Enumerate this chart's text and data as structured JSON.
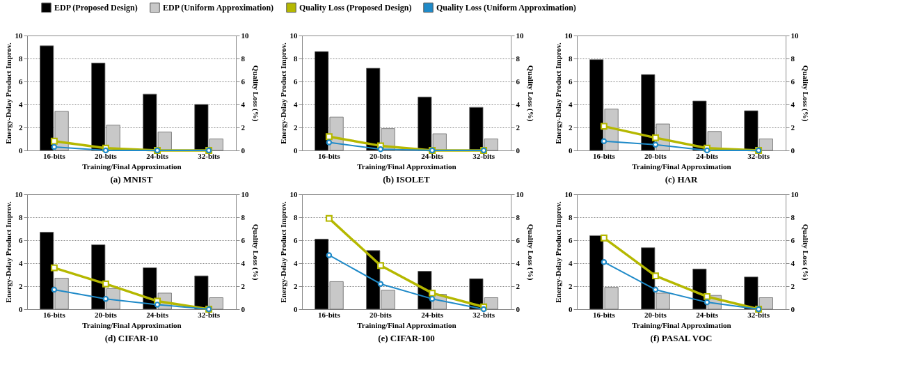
{
  "chart_data": [
    {
      "type": "bar",
      "title": "(a) MNIST",
      "xlabel": "Training/Final Approximation",
      "ylabel": "Energy-Delay Product Improv.",
      "y2label": "Quality Loss (%)",
      "categories": [
        "16-bits",
        "20-bits",
        "24-bits",
        "32-bits"
      ],
      "ylim": [
        0,
        10
      ],
      "yticks": [
        0,
        2,
        4,
        6,
        8,
        10
      ],
      "y2lim": [
        0,
        10
      ],
      "y2ticks": [
        0,
        2,
        4,
        6,
        8,
        10
      ],
      "grid": "y",
      "legend": "top",
      "series": [
        {
          "name": "EDP (Proposed Design)",
          "type": "bar",
          "color": "#000000",
          "values": [
            9.1,
            7.6,
            4.9,
            4.0
          ]
        },
        {
          "name": "EDP (Uniform Approximation)",
          "type": "bar",
          "color": "#c8c8c8",
          "values": [
            3.4,
            2.2,
            1.6,
            1.0
          ]
        },
        {
          "name": "Quality Loss (Proposed Design)",
          "type": "line",
          "axis": "y2",
          "marker": "square",
          "color": "#b5b800",
          "values": [
            0.8,
            0.2,
            0,
            0
          ]
        },
        {
          "name": "Quality Loss (Uniform Approximation)",
          "type": "line",
          "axis": "y2",
          "marker": "circle",
          "color": "#1f8ac8",
          "values": [
            0.3,
            0,
            0,
            0
          ]
        }
      ]
    },
    {
      "type": "bar",
      "title": "(b) ISOLET",
      "xlabel": "Training/Final Approximation",
      "ylabel": "Energy-Delay Product Improv.",
      "y2label": "Quality Loss (%)",
      "categories": [
        "16-bits",
        "20-bits",
        "24-bits",
        "32-bits"
      ],
      "ylim": [
        0,
        10
      ],
      "yticks": [
        0,
        2,
        4,
        6,
        8,
        10
      ],
      "y2lim": [
        0,
        10
      ],
      "y2ticks": [
        0,
        2,
        4,
        6,
        8,
        10
      ],
      "grid": "y",
      "series": [
        {
          "type": "bar",
          "color": "#000000",
          "values": [
            8.6,
            7.15,
            4.65,
            3.75
          ]
        },
        {
          "type": "bar",
          "color": "#c8c8c8",
          "values": [
            2.9,
            1.9,
            1.45,
            1.0
          ]
        },
        {
          "type": "line",
          "axis": "y2",
          "marker": "square",
          "color": "#b5b800",
          "values": [
            1.2,
            0.4,
            0,
            0
          ]
        },
        {
          "type": "line",
          "axis": "y2",
          "marker": "circle",
          "color": "#1f8ac8",
          "values": [
            0.7,
            0.1,
            0,
            0
          ]
        }
      ]
    },
    {
      "type": "bar",
      "title": "(c) HAR",
      "xlabel": "Training/Final Approximation",
      "ylabel": "Energy-Delay Product Improv.",
      "y2label": "Quality Loss (%)",
      "categories": [
        "16-bits",
        "20-bits",
        "24-bits",
        "32-bits"
      ],
      "ylim": [
        0,
        10
      ],
      "yticks": [
        0,
        2,
        4,
        6,
        8,
        10
      ],
      "y2lim": [
        0,
        10
      ],
      "y2ticks": [
        0,
        2,
        4,
        6,
        8,
        10
      ],
      "grid": "y",
      "series": [
        {
          "type": "bar",
          "color": "#000000",
          "values": [
            7.9,
            6.6,
            4.3,
            3.45
          ]
        },
        {
          "type": "bar",
          "color": "#c8c8c8",
          "values": [
            3.6,
            2.3,
            1.65,
            1.0
          ]
        },
        {
          "type": "line",
          "axis": "y2",
          "marker": "square",
          "color": "#b5b800",
          "values": [
            2.1,
            1.1,
            0.2,
            0
          ]
        },
        {
          "type": "line",
          "axis": "y2",
          "marker": "circle",
          "color": "#1f8ac8",
          "values": [
            0.8,
            0.5,
            0,
            0
          ]
        }
      ]
    },
    {
      "type": "bar",
      "title": "(d) CIFAR-10",
      "xlabel": "Training/Final Approximation",
      "ylabel": "Energy-Delay Product Improv.",
      "y2label": "Quality Loss (%)",
      "categories": [
        "16-bits",
        "20-bits",
        "24-bits",
        "32-bits"
      ],
      "ylim": [
        0,
        10
      ],
      "yticks": [
        0,
        2,
        4,
        6,
        8,
        10
      ],
      "y2lim": [
        0,
        10
      ],
      "y2ticks": [
        0,
        2,
        4,
        6,
        8,
        10
      ],
      "grid": "y",
      "series": [
        {
          "type": "bar",
          "color": "#000000",
          "values": [
            6.7,
            5.6,
            3.6,
            2.9
          ]
        },
        {
          "type": "bar",
          "color": "#c8c8c8",
          "values": [
            2.7,
            1.8,
            1.4,
            1.0
          ]
        },
        {
          "type": "line",
          "axis": "y2",
          "marker": "square",
          "color": "#b5b800",
          "values": [
            3.6,
            2.2,
            0.7,
            0
          ]
        },
        {
          "type": "line",
          "axis": "y2",
          "marker": "circle",
          "color": "#1f8ac8",
          "values": [
            1.7,
            0.9,
            0.4,
            0
          ]
        }
      ]
    },
    {
      "type": "bar",
      "title": "(e) CIFAR-100",
      "xlabel": "Training/Final Approximation",
      "ylabel": "Energy-Delay Product Improv.",
      "y2label": "Quality Loss (%)",
      "categories": [
        "16-bits",
        "20-bits",
        "24-bits",
        "32-bits"
      ],
      "ylim": [
        0,
        10
      ],
      "yticks": [
        0,
        2,
        4,
        6,
        8,
        10
      ],
      "y2lim": [
        0,
        10
      ],
      "y2ticks": [
        0,
        2,
        4,
        6,
        8,
        10
      ],
      "grid": "y",
      "series": [
        {
          "type": "bar",
          "color": "#000000",
          "values": [
            6.1,
            5.1,
            3.3,
            2.65
          ]
        },
        {
          "type": "bar",
          "color": "#c8c8c8",
          "values": [
            2.4,
            1.65,
            1.3,
            1.0
          ]
        },
        {
          "type": "line",
          "axis": "y2",
          "marker": "square",
          "color": "#b5b800",
          "values": [
            7.9,
            3.8,
            1.4,
            0.2
          ]
        },
        {
          "type": "line",
          "axis": "y2",
          "marker": "circle",
          "color": "#1f8ac8",
          "values": [
            4.7,
            2.2,
            0.9,
            0
          ]
        }
      ]
    },
    {
      "type": "bar",
      "title": "(f) PASAL VOC",
      "xlabel": "Training/Final Approximation",
      "ylabel": "Energy-Delay Product Improv.",
      "y2label": "Quality Loss (%)",
      "categories": [
        "16-bits",
        "20-bits",
        "24-bits",
        "32-bits"
      ],
      "ylim": [
        0,
        10
      ],
      "yticks": [
        0,
        2,
        4,
        6,
        8,
        10
      ],
      "y2lim": [
        0,
        10
      ],
      "y2ticks": [
        0,
        2,
        4,
        6,
        8,
        10
      ],
      "grid": "y",
      "series": [
        {
          "type": "bar",
          "color": "#000000",
          "values": [
            6.4,
            5.35,
            3.5,
            2.8
          ]
        },
        {
          "type": "bar",
          "color": "#c8c8c8",
          "values": [
            1.9,
            1.4,
            1.2,
            1.0
          ]
        },
        {
          "type": "line",
          "axis": "y2",
          "marker": "square",
          "color": "#b5b800",
          "values": [
            6.2,
            2.9,
            1.1,
            0
          ]
        },
        {
          "type": "line",
          "axis": "y2",
          "marker": "circle",
          "color": "#1f8ac8",
          "values": [
            4.1,
            1.7,
            0.6,
            0
          ]
        }
      ]
    }
  ]
}
